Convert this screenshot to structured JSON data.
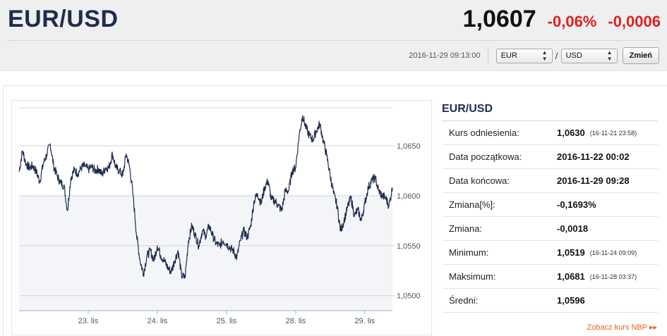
{
  "header": {
    "title": "EUR/USD",
    "rate": "1,0607",
    "change_pct": "-0,06%",
    "change_abs": "-0,0006",
    "timestamp": "2016-11-29 09:13:00",
    "base_currency": "EUR",
    "quote_currency": "USD",
    "separator": "/",
    "submit_label": "Zmień"
  },
  "chart_data": {
    "type": "line",
    "title": "",
    "xlabel": "",
    "ylabel": "",
    "x_tick_labels": [
      "23. lis",
      "24. lis",
      "25. lis",
      "28. lis",
      "29. lis"
    ],
    "y_tick_labels": [
      "1,0650",
      "1,0600",
      "1,0550",
      "1,0500"
    ],
    "y_ticks": [
      1.065,
      1.06,
      1.055,
      1.05
    ],
    "ylim": [
      1.0485,
      1.0688
    ],
    "xlim": [
      0,
      5.4
    ],
    "x_tick_positions": [
      1,
      2,
      3,
      4,
      5
    ],
    "grid": true,
    "legend": "none",
    "line_color": "#1f2d4d",
    "series": [
      {
        "values": [
          [
            0.0,
            1.0624
          ],
          [
            0.05,
            1.0645
          ],
          [
            0.1,
            1.0632
          ],
          [
            0.15,
            1.0628
          ],
          [
            0.2,
            1.063
          ],
          [
            0.25,
            1.0624
          ],
          [
            0.3,
            1.0614
          ],
          [
            0.35,
            1.0632
          ],
          [
            0.4,
            1.0641
          ],
          [
            0.45,
            1.0652
          ],
          [
            0.5,
            1.063
          ],
          [
            0.55,
            1.062
          ],
          [
            0.6,
            1.0613
          ],
          [
            0.65,
            1.061
          ],
          [
            0.7,
            1.0585
          ],
          [
            0.75,
            1.0618
          ],
          [
            0.8,
            1.0626
          ],
          [
            0.85,
            1.0622
          ],
          [
            0.9,
            1.0628
          ],
          [
            0.95,
            1.063
          ],
          [
            1.0,
            1.0626
          ],
          [
            1.05,
            1.0629
          ],
          [
            1.1,
            1.0625
          ],
          [
            1.15,
            1.0627
          ],
          [
            1.2,
            1.0621
          ],
          [
            1.25,
            1.0628
          ],
          [
            1.3,
            1.0628
          ],
          [
            1.35,
            1.0642
          ],
          [
            1.4,
            1.0628
          ],
          [
            1.45,
            1.0625
          ],
          [
            1.5,
            1.062
          ],
          [
            1.55,
            1.0642
          ],
          [
            1.6,
            1.0628
          ],
          [
            1.65,
            1.06
          ],
          [
            1.7,
            1.056
          ],
          [
            1.75,
            1.0535
          ],
          [
            1.8,
            1.0522
          ],
          [
            1.85,
            1.054
          ],
          [
            1.9,
            1.0545
          ],
          [
            1.95,
            1.0535
          ],
          [
            2.0,
            1.055
          ],
          [
            2.05,
            1.054
          ],
          [
            2.1,
            1.0535
          ],
          [
            2.15,
            1.0528
          ],
          [
            2.2,
            1.0524
          ],
          [
            2.25,
            1.0535
          ],
          [
            2.3,
            1.0545
          ],
          [
            2.35,
            1.052
          ],
          [
            2.4,
            1.0518
          ],
          [
            2.45,
            1.0555
          ],
          [
            2.5,
            1.057
          ],
          [
            2.55,
            1.056
          ],
          [
            2.6,
            1.055
          ],
          [
            2.65,
            1.0565
          ],
          [
            2.7,
            1.056
          ],
          [
            2.75,
            1.057
          ],
          [
            2.8,
            1.056
          ],
          [
            2.85,
            1.0552
          ],
          [
            2.9,
            1.055
          ],
          [
            2.95,
            1.0555
          ],
          [
            3.0,
            1.0552
          ],
          [
            3.05,
            1.0548
          ],
          [
            3.1,
            1.0545
          ],
          [
            3.15,
            1.0538
          ],
          [
            3.2,
            1.0555
          ],
          [
            3.25,
            1.0565
          ],
          [
            3.3,
            1.0558
          ],
          [
            3.35,
            1.057
          ],
          [
            3.4,
            1.0595
          ],
          [
            3.45,
            1.0602
          ],
          [
            3.5,
            1.0592
          ],
          [
            3.55,
            1.0608
          ],
          [
            3.6,
            1.0615
          ],
          [
            3.65,
            1.0596
          ],
          [
            3.7,
            1.0595
          ],
          [
            3.75,
            1.059
          ],
          [
            3.8,
            1.0585
          ],
          [
            3.85,
            1.0605
          ],
          [
            3.9,
            1.0605
          ],
          [
            3.95,
            1.0625
          ],
          [
            4.0,
            1.0628
          ],
          [
            4.05,
            1.066
          ],
          [
            4.1,
            1.068
          ],
          [
            4.15,
            1.0668
          ],
          [
            4.2,
            1.066
          ],
          [
            4.25,
            1.0656
          ],
          [
            4.3,
            1.0665
          ],
          [
            4.35,
            1.0672
          ],
          [
            4.4,
            1.0655
          ],
          [
            4.45,
            1.064
          ],
          [
            4.5,
            1.062
          ],
          [
            4.55,
            1.0602
          ],
          [
            4.6,
            1.059
          ],
          [
            4.65,
            1.0565
          ],
          [
            4.7,
            1.0575
          ],
          [
            4.75,
            1.0588
          ],
          [
            4.8,
            1.0598
          ],
          [
            4.85,
            1.058
          ],
          [
            4.9,
            1.0586
          ],
          [
            4.95,
            1.0575
          ],
          [
            5.0,
            1.0592
          ],
          [
            5.05,
            1.0608
          ],
          [
            5.1,
            1.0615
          ],
          [
            5.15,
            1.0618
          ],
          [
            5.2,
            1.0605
          ],
          [
            5.25,
            1.06
          ],
          [
            5.3,
            1.0598
          ],
          [
            5.35,
            1.059
          ],
          [
            5.4,
            1.0608
          ]
        ]
      }
    ]
  },
  "stats": {
    "title": "EUR/USD",
    "rows": [
      {
        "label": "Kurs odniesienia:",
        "value": "1,0630",
        "date": "(16-11-21 23:58)"
      },
      {
        "label": "Data początkowa:",
        "value": "2016-11-22 00:02",
        "date": ""
      },
      {
        "label": "Data końcowa:",
        "value": "2016-11-29 09:28",
        "date": ""
      },
      {
        "label": "Zmiana[%]:",
        "value": "-0,1693%",
        "date": ""
      },
      {
        "label": "Zmiana:",
        "value": "-0,0018",
        "date": ""
      },
      {
        "label": "Minimum:",
        "value": "1,0519",
        "date": "(16-11-24 09:09)"
      },
      {
        "label": "Maksimum:",
        "value": "1,0681",
        "date": "(16-11-28 03:37)"
      },
      {
        "label": "Średni:",
        "value": "1,0596",
        "date": ""
      }
    ],
    "link_label": "Zobacz kurs NBP",
    "link_arrows": "▸▸"
  }
}
